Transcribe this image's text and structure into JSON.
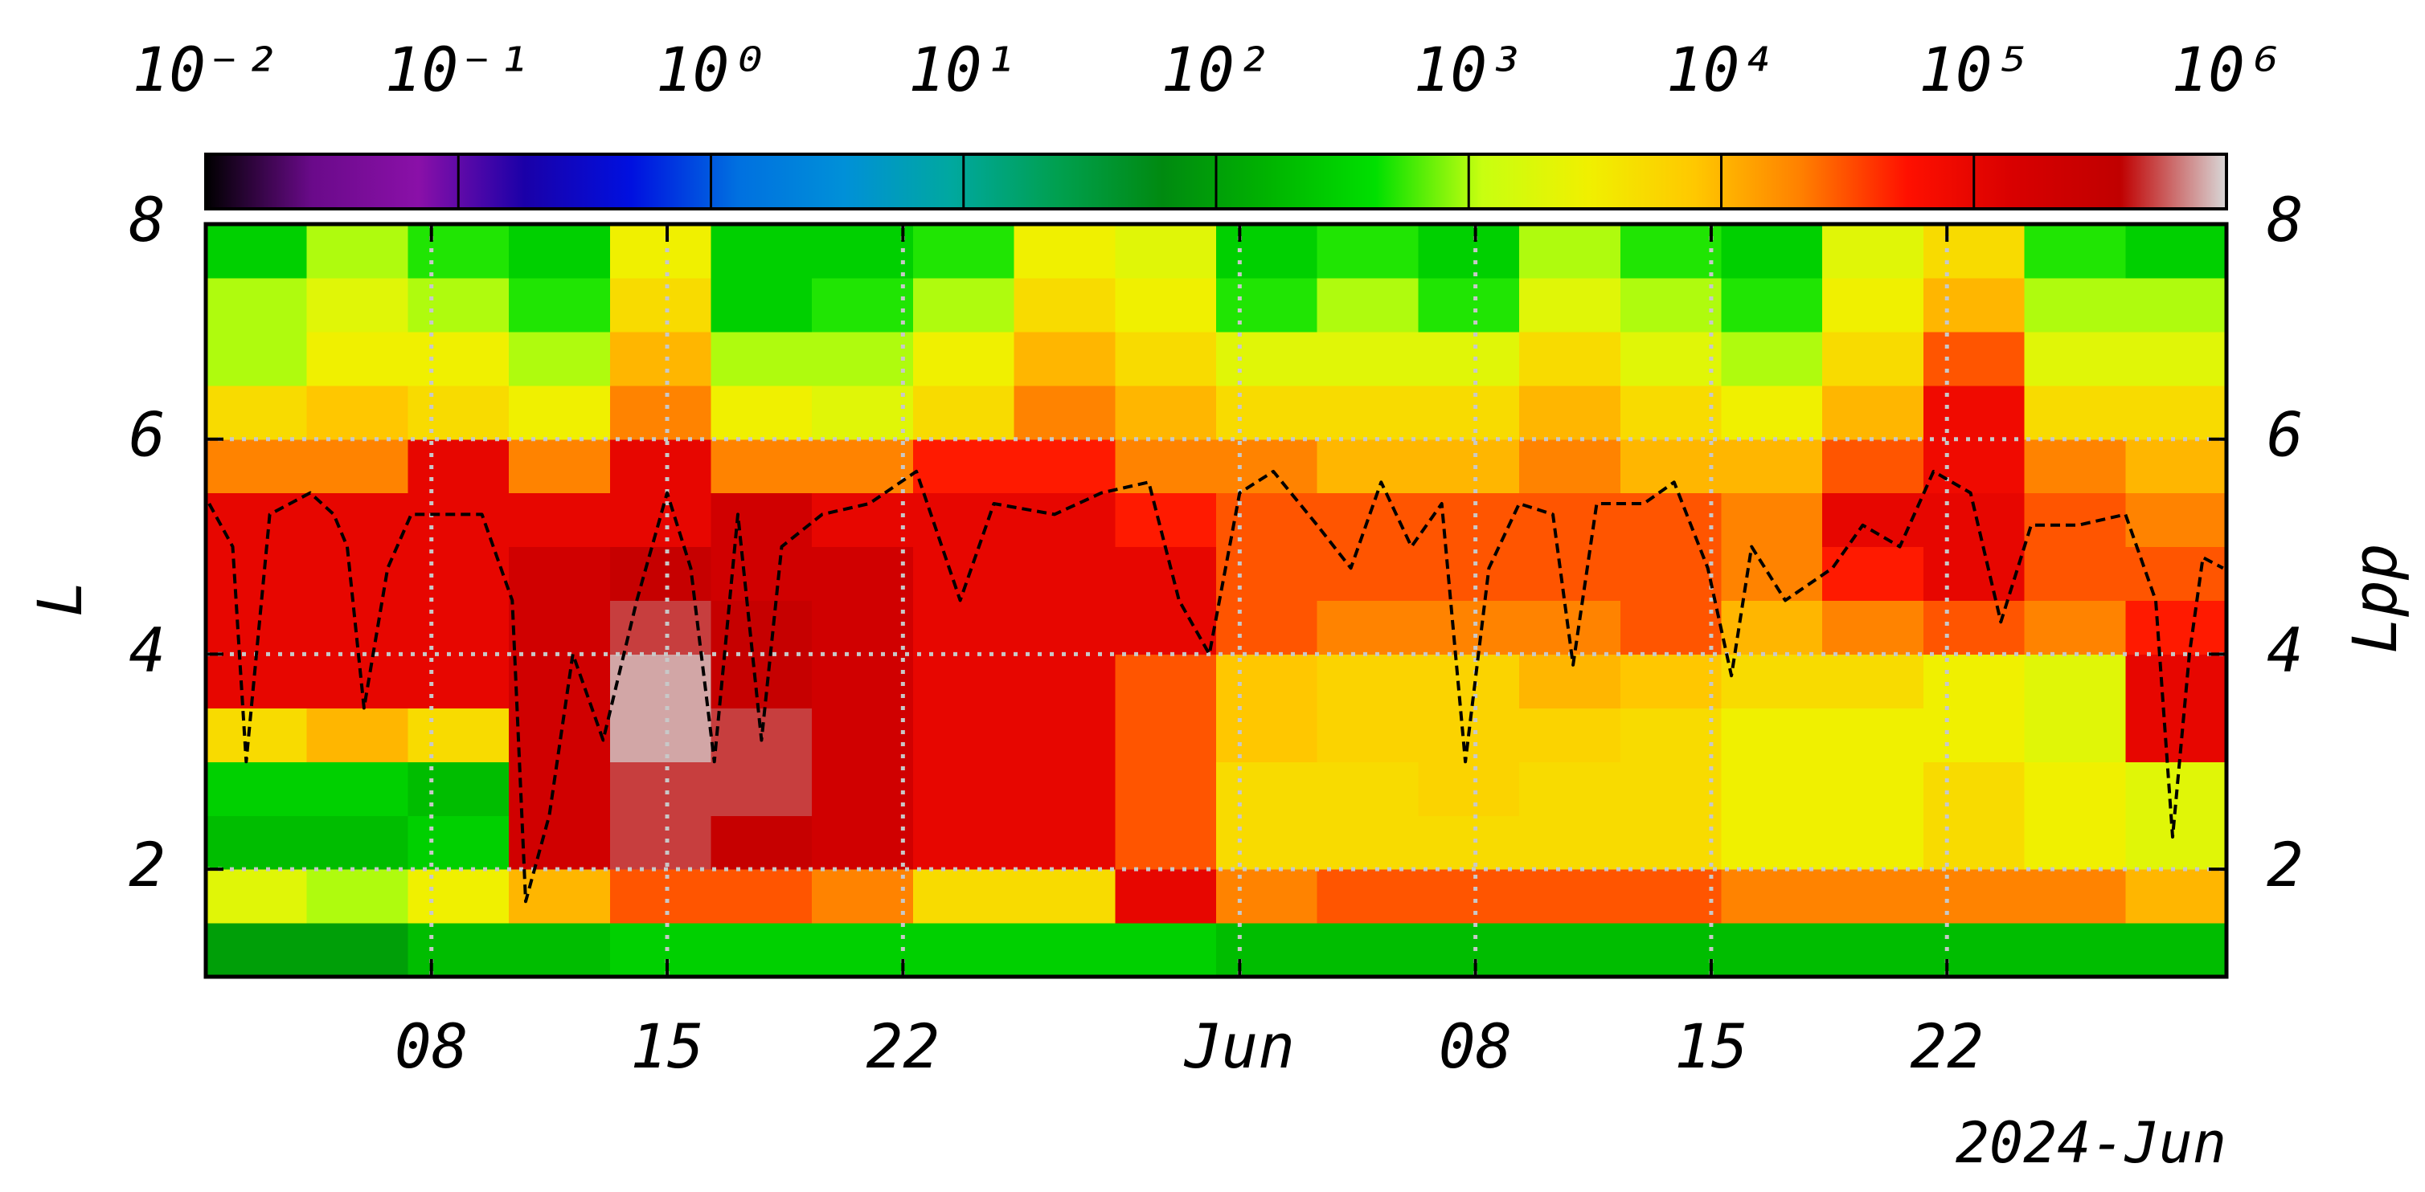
{
  "chart_data": {
    "type": "heatmap",
    "xlabel": "2024-Jun",
    "ylabel": "L",
    "y2label": "Lpp",
    "xlim": [
      0.3,
      60.3
    ],
    "xticks": [
      {
        "value": 7,
        "label": "08"
      },
      {
        "value": 14,
        "label": "15"
      },
      {
        "value": 21,
        "label": "22"
      },
      {
        "value": 31,
        "label": "Jun"
      },
      {
        "value": 38,
        "label": "08"
      },
      {
        "value": 45,
        "label": "15"
      },
      {
        "value": 52,
        "label": "22"
      }
    ],
    "ylim": [
      1,
      8
    ],
    "yticks": [
      2,
      4,
      6,
      8
    ],
    "y2lim": [
      1,
      8
    ],
    "y2ticks": [
      2,
      4,
      6,
      8
    ],
    "grid": true,
    "xbins": [
      0.3,
      3.3,
      6.3,
      9.3,
      12.3,
      15.3,
      18.3,
      21.3,
      24.3,
      27.3,
      30.3,
      33.3,
      36.3,
      39.3,
      42.3,
      45.3,
      48.3,
      51.3,
      54.3,
      57.3,
      60.3
    ],
    "ybins": [
      1,
      1.5,
      2,
      2.5,
      3,
      3.5,
      4,
      4.5,
      5,
      5.5,
      6,
      6.5,
      7,
      7.5,
      8
    ],
    "z": [
      [
        100,
        100,
        200,
        200,
        300,
        300,
        300,
        300,
        300,
        300,
        200,
        200,
        200,
        200,
        200,
        200,
        200,
        200,
        200,
        200
      ],
      [
        2000,
        1000,
        3000,
        10000,
        30000,
        30000,
        20000,
        5000,
        5000,
        100000,
        20000,
        30000,
        30000,
        30000,
        30000,
        20000,
        20000,
        20000,
        20000,
        10000
      ],
      [
        200,
        200,
        300,
        200000,
        500000,
        300000,
        200000,
        100000,
        100000,
        30000,
        5000,
        5000,
        5000,
        5000,
        5000,
        3000,
        3000,
        5000,
        3000,
        2000
      ],
      [
        300,
        300,
        200,
        200000,
        500000,
        500000,
        200000,
        100000,
        100000,
        30000,
        5000,
        5000,
        6000,
        5000,
        5000,
        3000,
        3000,
        5000,
        3000,
        2000
      ],
      [
        5000,
        10000,
        5000,
        200000,
        800000,
        500000,
        200000,
        100000,
        100000,
        30000,
        8000,
        6000,
        6000,
        6000,
        5000,
        3000,
        3000,
        3000,
        2000,
        100000
      ],
      [
        100000,
        100000,
        100000,
        200000,
        800000,
        300000,
        200000,
        100000,
        100000,
        30000,
        8000,
        6000,
        6000,
        10000,
        8000,
        5000,
        5000,
        3000,
        2000,
        100000
      ],
      [
        100000,
        100000,
        100000,
        200000,
        500000,
        300000,
        200000,
        100000,
        100000,
        100000,
        30000,
        20000,
        20000,
        20000,
        30000,
        10000,
        20000,
        30000,
        20000,
        50000
      ],
      [
        100000,
        100000,
        100000,
        200000,
        300000,
        200000,
        200000,
        100000,
        100000,
        100000,
        30000,
        30000,
        30000,
        30000,
        30000,
        20000,
        50000,
        100000,
        30000,
        30000
      ],
      [
        100000,
        100000,
        100000,
        100000,
        100000,
        200000,
        100000,
        100000,
        100000,
        50000,
        30000,
        30000,
        30000,
        30000,
        30000,
        20000,
        100000,
        100000,
        30000,
        20000
      ],
      [
        20000,
        20000,
        100000,
        20000,
        100000,
        20000,
        20000,
        50000,
        50000,
        20000,
        20000,
        10000,
        10000,
        20000,
        10000,
        10000,
        30000,
        80000,
        20000,
        10000
      ],
      [
        5000,
        8000,
        5000,
        3000,
        20000,
        3000,
        2000,
        5000,
        20000,
        10000,
        5000,
        5000,
        5000,
        10000,
        5000,
        3000,
        10000,
        80000,
        5000,
        5000
      ],
      [
        1000,
        3000,
        3000,
        1000,
        10000,
        1000,
        1000,
        3000,
        10000,
        5000,
        2000,
        2000,
        2000,
        5000,
        2000,
        1000,
        5000,
        30000,
        2000,
        2000
      ],
      [
        1000,
        2000,
        1000,
        500,
        5000,
        300,
        500,
        1000,
        5000,
        3000,
        500,
        1000,
        500,
        2000,
        1000,
        500,
        3000,
        10000,
        1000,
        1000
      ],
      [
        300,
        1000,
        500,
        300,
        3000,
        300,
        300,
        500,
        3000,
        2000,
        300,
        500,
        300,
        1000,
        500,
        300,
        2000,
        5000,
        500,
        300
      ]
    ],
    "colorbar": {
      "log": true,
      "clim": [
        0.01,
        1000000
      ],
      "ticks": [
        {
          "value": 0.01,
          "label": "10⁻²"
        },
        {
          "value": 0.1,
          "label": "10⁻¹"
        },
        {
          "value": 1,
          "label": "10⁰"
        },
        {
          "value": 10,
          "label": "10¹"
        },
        {
          "value": 100,
          "label": "10²"
        },
        {
          "value": 1000,
          "label": "10³"
        },
        {
          "value": 10000,
          "label": "10⁴"
        },
        {
          "value": 100000,
          "label": "10⁵"
        },
        {
          "value": 1000000,
          "label": "10⁶"
        }
      ],
      "colors": [
        "#000000",
        "#6a0a8a",
        "#8a10a8",
        "#1a00a8",
        "#0010e0",
        "#0070e0",
        "#0090d8",
        "#00a8a0",
        "#00a050",
        "#008a10",
        "#00b400",
        "#00e000",
        "#c8ff10",
        "#f0f000",
        "#ffc800",
        "#ff8000",
        "#ff1000",
        "#d80000",
        "#c00000",
        "#d8d8d8"
      ]
    },
    "line": {
      "axis": "y2",
      "color": "#000000",
      "linestyle": "dashed",
      "x": [
        0.4,
        1.1,
        1.5,
        2.2,
        3.4,
        4.1,
        4.5,
        5.0,
        5.7,
        6.4,
        7.5,
        8.5,
        9.4,
        9.8,
        10.5,
        11.2,
        12.1,
        13.1,
        14.0,
        14.7,
        15.4,
        16.1,
        16.8,
        17.4,
        18.6,
        20.0,
        21.4,
        22.7,
        23.7,
        25.5,
        26.9,
        28.3,
        29.2,
        30.1,
        31.0,
        32.0,
        33.3,
        34.3,
        35.2,
        36.1,
        37.0,
        37.7,
        38.4,
        39.3,
        40.3,
        40.9,
        41.6,
        43.0,
        43.9,
        44.9,
        45.6,
        46.2,
        47.2,
        48.6,
        49.5,
        50.6,
        51.6,
        52.7,
        53.6,
        54.5,
        55.9,
        57.3,
        58.2,
        58.7,
        59.2,
        59.6,
        60.2
      ],
      "values": [
        5.4,
        5.0,
        3.0,
        5.3,
        5.5,
        5.3,
        5.0,
        3.5,
        4.8,
        5.3,
        5.3,
        5.3,
        4.5,
        1.7,
        2.5,
        4.0,
        3.2,
        4.5,
        5.5,
        4.8,
        3.0,
        5.3,
        3.2,
        5.0,
        5.3,
        5.4,
        5.7,
        4.5,
        5.4,
        5.3,
        5.5,
        5.6,
        4.5,
        4.0,
        5.5,
        5.7,
        5.2,
        4.8,
        5.6,
        5.0,
        5.4,
        3.0,
        4.8,
        5.4,
        5.3,
        3.9,
        5.4,
        5.4,
        5.6,
        4.8,
        3.8,
        5.0,
        4.5,
        4.8,
        5.2,
        5.0,
        5.7,
        5.5,
        4.3,
        5.2,
        5.2,
        5.3,
        4.5,
        2.3,
        4.0,
        4.9,
        4.8
      ]
    }
  }
}
